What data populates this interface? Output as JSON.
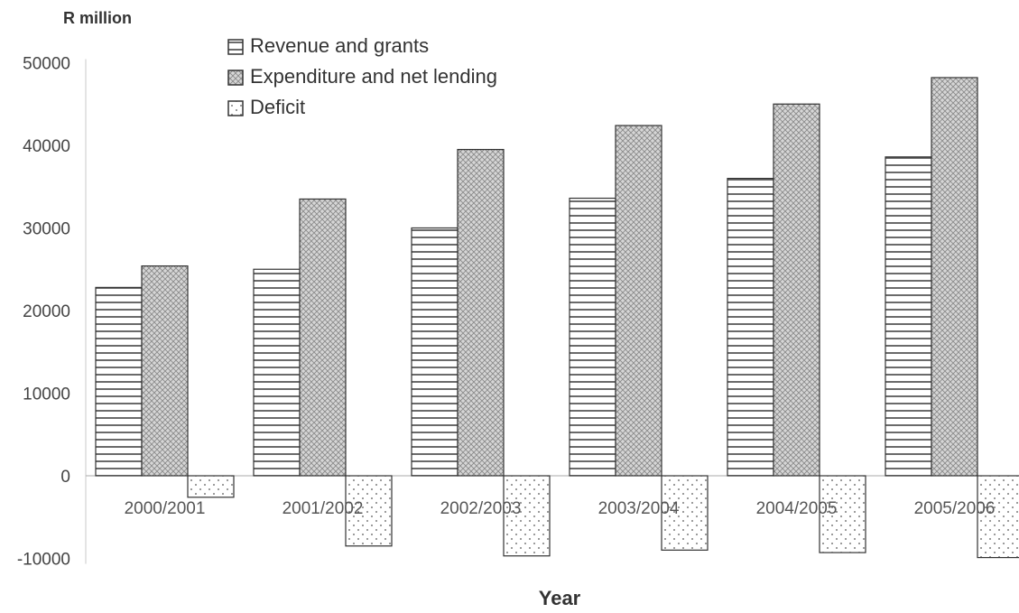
{
  "chart_data": {
    "type": "bar",
    "ylabel": "R million",
    "xlabel": "Year",
    "ylim": [
      -10000,
      50000
    ],
    "yticks": [
      50000,
      40000,
      30000,
      20000,
      10000,
      0,
      -10000
    ],
    "grid": false,
    "legend_position": "top-left",
    "categories": [
      "2000/2001",
      "2001/2002",
      "2002/2003",
      "2003/2004",
      "2004/2005",
      "2005/2006"
    ],
    "series": [
      {
        "name": "Revenue and grants",
        "pattern": "horizontal-stripes",
        "values": [
          22800,
          25000,
          30000,
          33600,
          36000,
          38600
        ]
      },
      {
        "name": "Expenditure and net lending",
        "pattern": "crosshatch",
        "values": [
          25400,
          33500,
          39500,
          42400,
          45000,
          48200
        ]
      },
      {
        "name": "Deficit",
        "pattern": "dots",
        "values": [
          -2600,
          -8500,
          -9700,
          -9000,
          -9300,
          -9900
        ]
      }
    ]
  }
}
